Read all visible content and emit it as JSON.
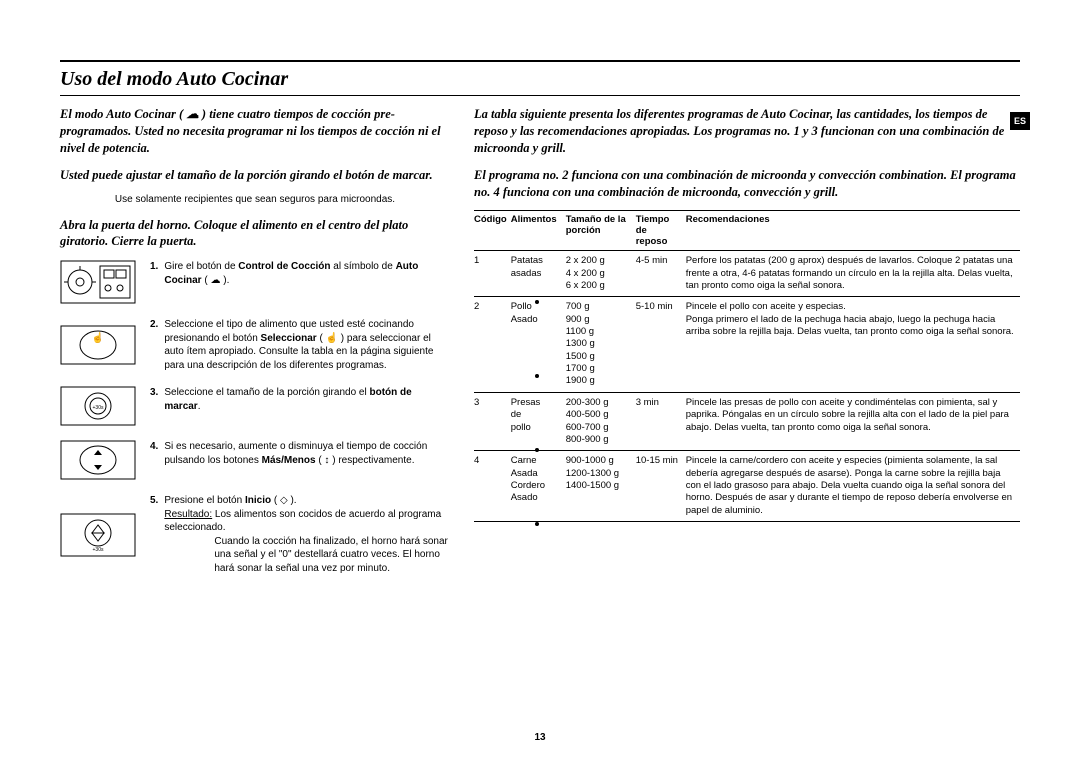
{
  "page": {
    "title": "Uso del modo Auto Cocinar",
    "lang_tab": "ES",
    "page_number": "13"
  },
  "left": {
    "intro1": "El modo Auto Cocinar ( ☁ ) tiene cuatro tiempos de cocción pre-programados. Usted no necesita programar ni los tiempos de cocción ni el nivel de potencia.",
    "intro2": "Usted puede ajustar el tamaño de la porción girando el botón de marcar.",
    "note": "Use solamente recipientes que sean seguros para microondas.",
    "intro3": "Abra la puerta del horno. Coloque el alimento en el centro del plato giratorio. Cierre la puerta.",
    "steps": {
      "s1": {
        "n": "1.",
        "a": "Gire el botón de ",
        "b": "Control de Cocción",
        "c": " al símbolo de ",
        "d": "Auto Cocinar",
        "e": " ( ☁ )."
      },
      "s2": {
        "n": "2.",
        "a": "Seleccione el tipo de alimento que usted esté cocinando presionando el botón ",
        "b": "Seleccionar",
        "c": " ( ☝ ) para seleccionar el auto ítem apropiado. Consulte la tabla en la página siguiente para una descripción de los diferentes programas."
      },
      "s3": {
        "n": "3.",
        "a": "Seleccione el tamaño de la porción girando el ",
        "b": "botón de marcar",
        "c": "."
      },
      "s4": {
        "n": "4.",
        "a": "Si es necesario, aumente o disminuya el tiempo de cocción pulsando los botones ",
        "b": "Más/Menos",
        "c": " ( ↕ ) respectivamente."
      },
      "s5": {
        "n": "5.",
        "a": "Presione el botón ",
        "b": "Inicio",
        "c": " ( ◇ ).",
        "res_lbl": "Resultado:",
        "res_a": " Los alimentos son cocidos de acuerdo al programa seleccionado.",
        "res_b": "Cuando la cocción ha finalizado, el horno hará sonar una señal y el \"0\" destellará cuatro veces. El horno hará sonar la señal una vez por minuto."
      }
    }
  },
  "right": {
    "intro1": "La tabla siguiente presenta los diferentes programas de Auto Cocinar, las cantidades, los tiempos de reposo y las recomendaciones apropiadas. Los programas no. 1 y 3 funcionan con una combinación de microonda y grill.",
    "intro2": "El programa no. 2 funciona con una combinación de microonda y convección combination. El programa no. 4 funciona con una combinación de microonda, convección y grill.",
    "headers": {
      "code": "Código",
      "food": "Alimentos",
      "size1": "Tamaño de la",
      "size2": "porción",
      "rest1": "Tiempo de",
      "rest2": "reposo",
      "rec": "Recomendaciones"
    },
    "rows": [
      {
        "code": "1",
        "food": "Patatas asadas",
        "size": "2 x 200 g\n4 x 200 g\n6 x 200 g",
        "rest": "4-5 min",
        "rec": "Perfore los patatas (200 g aprox) después de lavarlos. Coloque 2 patatas una frente a otra, 4-6 patatas formando un círculo en la la rejilla alta. Delas vuelta, tan pronto como oiga la señal sonora."
      },
      {
        "code": "2",
        "food": "Pollo Asado",
        "size": "700 g\n900 g\n1100 g\n1300 g\n1500 g\n1700 g\n1900 g",
        "rest": "5-10 min",
        "rec": "Pincele el pollo con aceite y especias.\nPonga primero el lado de la pechuga hacia abajo, luego la pechuga hacia arriba sobre la rejilla baja. Delas vuelta, tan pronto como oiga la señal sonora."
      },
      {
        "code": "3",
        "food": "Presas de pollo",
        "size": "200-300 g\n400-500 g\n600-700 g\n800-900 g",
        "rest": "3 min",
        "rec": "Pincele las presas de pollo con aceite y condiméntelas con pimienta, sal y paprika. Póngalas en un círculo sobre la rejilla alta con el lado de la piel para abajo. Delas vuelta, tan pronto como oiga la señal sonora."
      },
      {
        "code": "4",
        "food": "Carne Asada Cordero Asado",
        "size": "900-1000 g\n1200-1300 g\n1400-1500 g",
        "rest": "10-15 min",
        "rec": "Pincele la carne/cordero con aceite y especies (pimienta solamente, la sal debería agregarse después de asarse). Ponga la carne sobre la rejilla baja con el lado grasoso para abajo. Dela vuelta cuando oiga la señal sonora del horno. Después de asar y durante el tiempo de reposo debería envolverse en papel de aluminio."
      }
    ]
  }
}
